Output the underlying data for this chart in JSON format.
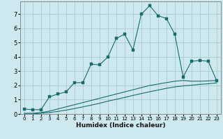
{
  "xlabel": "Humidex (Indice chaleur)",
  "bg_color": "#cde8ee",
  "grid_color": "#aacccc",
  "line_color": "#1a6b6b",
  "xlim": [
    -0.5,
    23.5
  ],
  "ylim": [
    0,
    7.9
  ],
  "xticks": [
    0,
    1,
    2,
    3,
    4,
    5,
    6,
    7,
    8,
    9,
    10,
    11,
    12,
    13,
    14,
    15,
    16,
    17,
    18,
    19,
    20,
    21,
    22,
    23
  ],
  "yticks": [
    0,
    1,
    2,
    3,
    4,
    5,
    6,
    7
  ],
  "line1_x": [
    0,
    1,
    2,
    3,
    4,
    5,
    6,
    7,
    8,
    9,
    10,
    11,
    12,
    13,
    14,
    15,
    16,
    17,
    18,
    19,
    20,
    21,
    22,
    23
  ],
  "line1_y": [
    0.35,
    0.3,
    0.3,
    1.2,
    1.4,
    1.55,
    2.2,
    2.2,
    3.5,
    3.45,
    4.0,
    5.3,
    5.6,
    4.5,
    7.0,
    7.6,
    6.9,
    6.7,
    5.6,
    2.6,
    3.7,
    3.75,
    3.7,
    2.35
  ],
  "line2_x": [
    0,
    1,
    2,
    3,
    4,
    5,
    6,
    7,
    8,
    9,
    10,
    11,
    12,
    13,
    14,
    15,
    16,
    17,
    18,
    19,
    20,
    21,
    22,
    23
  ],
  "line2_y": [
    0.05,
    0.05,
    0.1,
    0.2,
    0.35,
    0.5,
    0.65,
    0.8,
    0.95,
    1.1,
    1.25,
    1.4,
    1.55,
    1.7,
    1.85,
    2.0,
    2.1,
    2.2,
    2.3,
    2.35,
    2.3,
    2.3,
    2.32,
    2.35
  ],
  "line3_x": [
    0,
    1,
    2,
    3,
    4,
    5,
    6,
    7,
    8,
    9,
    10,
    11,
    12,
    13,
    14,
    15,
    16,
    17,
    18,
    19,
    20,
    21,
    22,
    23
  ],
  "line3_y": [
    0.0,
    0.0,
    0.05,
    0.1,
    0.18,
    0.27,
    0.38,
    0.5,
    0.62,
    0.75,
    0.9,
    1.03,
    1.16,
    1.3,
    1.43,
    1.56,
    1.68,
    1.8,
    1.9,
    1.97,
    2.02,
    2.08,
    2.12,
    2.18
  ]
}
